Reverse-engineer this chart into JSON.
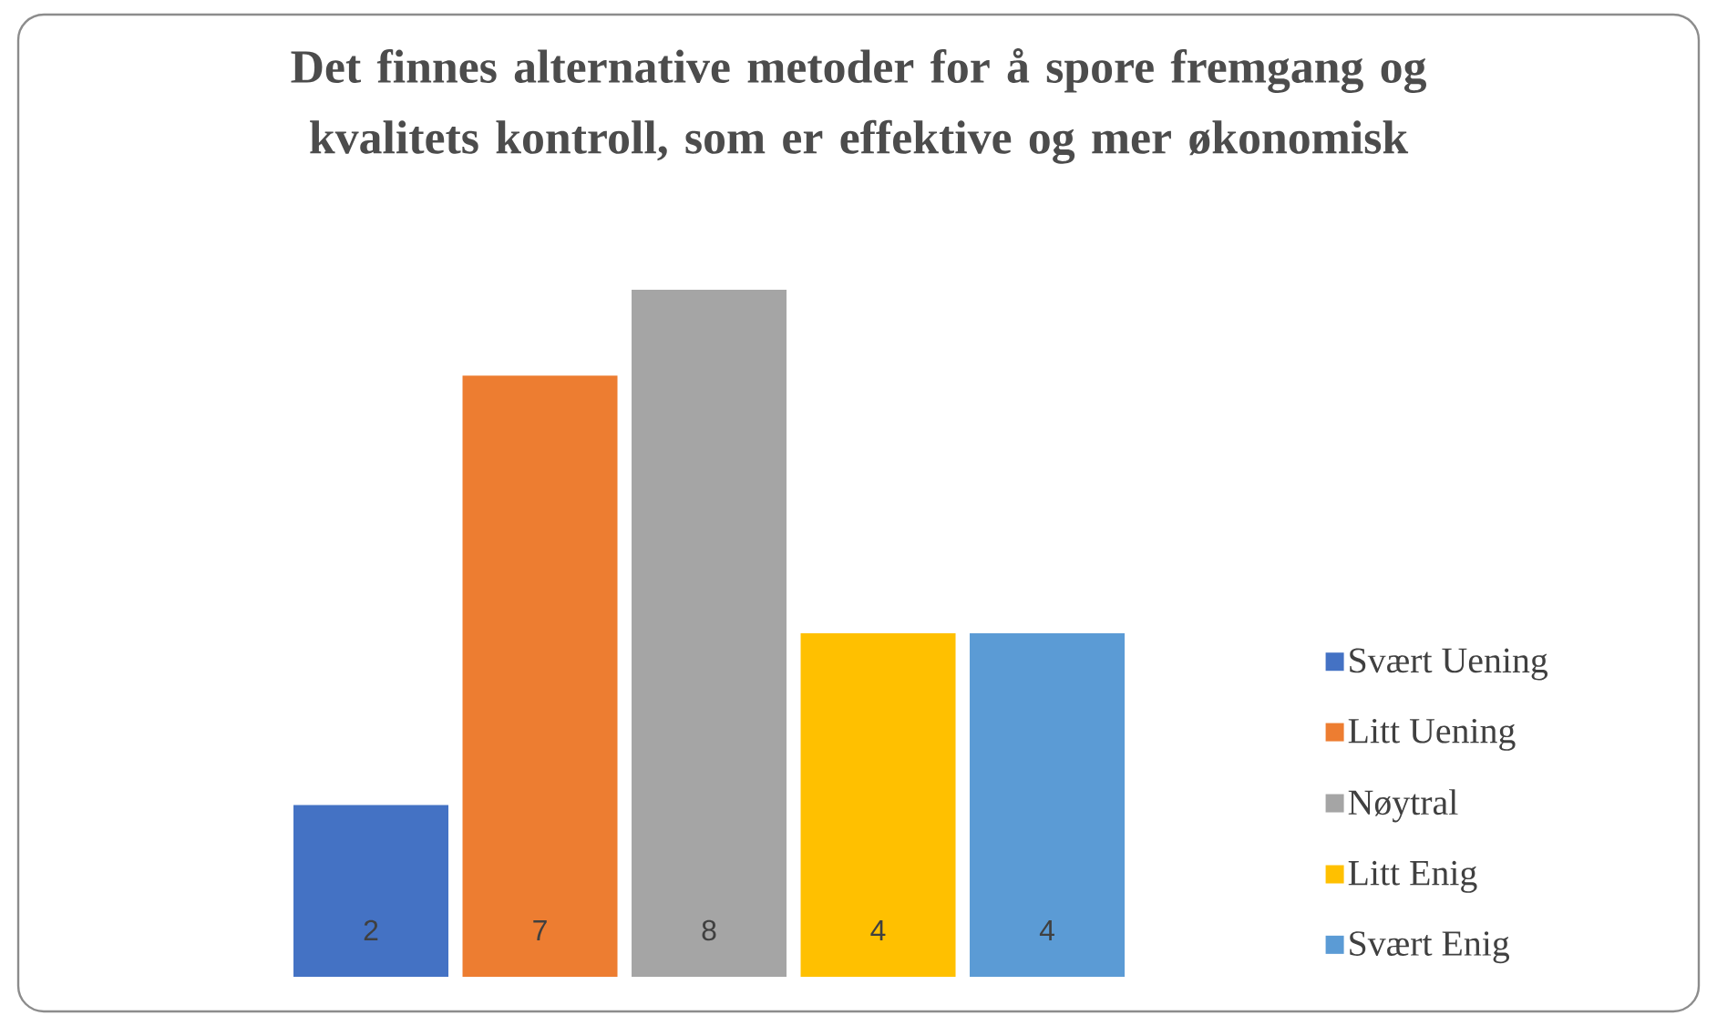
{
  "chart_data": {
    "type": "bar",
    "title": "Det finnes alternative metoder for å spore fremgang og kvalitets kontroll, som er effektive og mer økonomisk",
    "categories": [
      null
    ],
    "series": [
      {
        "name": "Svært Uening",
        "color": "#4472c4",
        "values": [
          2
        ]
      },
      {
        "name": "Litt Uening",
        "color": "#ed7d31",
        "values": [
          7
        ]
      },
      {
        "name": "Nøytral",
        "color": "#a5a5a5",
        "values": [
          8
        ]
      },
      {
        "name": "Litt Enig",
        "color": "#ffc000",
        "values": [
          4
        ]
      },
      {
        "name": "Svært Enig",
        "color": "#5b9bd5",
        "values": [
          4
        ]
      }
    ],
    "ylim": [
      0,
      8
    ],
    "data_labels": true,
    "legend": "right"
  }
}
